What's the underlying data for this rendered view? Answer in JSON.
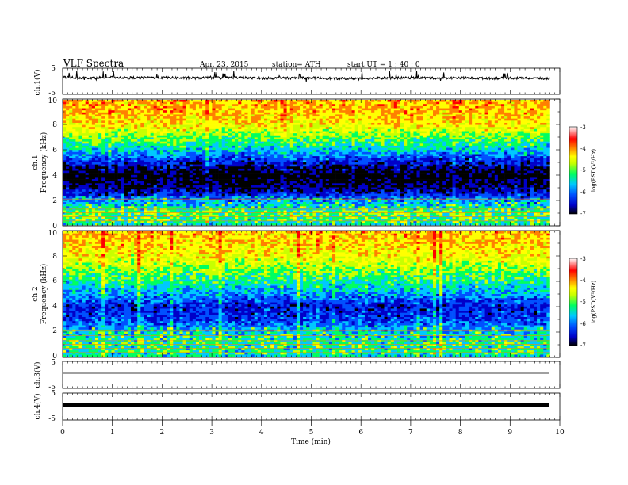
{
  "header": {
    "title": "VLF  Spectra",
    "date": "Apr. 23, 2015",
    "station": "station= ATH",
    "start": "start  UT  =   1 : 40 : 0"
  },
  "colors": {
    "spectrum_scale": [
      "#000000",
      "#0000c8",
      "#0050ff",
      "#00c8ff",
      "#00ff60",
      "#c8ff00",
      "#ffff00",
      "#ff8000",
      "#ff0000",
      "#ffffff"
    ],
    "trace": "#000000"
  },
  "chart_data": [
    {
      "type": "line",
      "id": "ch1-waveform",
      "ylabel": "ch.1(V)",
      "ylim": [
        -5,
        5
      ],
      "yticks": [
        "5",
        "-5"
      ],
      "x": [
        0,
        0.5,
        1,
        1.5,
        2,
        2.5,
        3,
        3.5,
        4,
        4.5,
        5,
        5.5,
        6,
        6.5,
        7,
        7.5,
        8,
        8.5,
        9,
        9.5,
        9.8
      ],
      "values": [
        1.6,
        1.2,
        1.5,
        1.3,
        1.4,
        1.2,
        1.3,
        1.4,
        1.1,
        1.2,
        1.3,
        1.0,
        1.1,
        1.2,
        1.3,
        1.2,
        1.3,
        1.1,
        1.2,
        1.1,
        1.0
      ]
    },
    {
      "type": "heatmap",
      "id": "ch1-spectrogram",
      "ylabel_top": "ch.1",
      "ylabel": "Frequency  (kHz)",
      "ylim": [
        0,
        10
      ],
      "yticks": [
        "0",
        "2",
        "4",
        "6",
        "8",
        "10"
      ],
      "freq_khz": [
        0,
        1,
        2,
        3,
        4,
        5,
        6,
        7,
        8,
        9,
        10
      ],
      "log_psd": [
        -5.2,
        -5.0,
        -5.8,
        -6.6,
        -6.9,
        -6.2,
        -5.4,
        -4.8,
        -4.1,
        -3.9,
        -3.8
      ],
      "colorbar": {
        "label": "log(PSD(V²/Hz)",
        "ticks": [
          "-3",
          "-4",
          "-5",
          "-6",
          "-7"
        ],
        "range": [
          -7,
          -3
        ]
      }
    },
    {
      "type": "heatmap",
      "id": "ch2-spectrogram",
      "ylabel_top": "ch.2",
      "ylabel": "Frequency  (kHz)",
      "ylim": [
        0,
        10
      ],
      "yticks": [
        "0",
        "2",
        "4",
        "6",
        "8",
        "10"
      ],
      "freq_khz": [
        0,
        1,
        2,
        3,
        4,
        5,
        6,
        7,
        8,
        9,
        10
      ],
      "log_psd": [
        -5.3,
        -5.2,
        -5.5,
        -6.0,
        -6.2,
        -5.6,
        -5.1,
        -4.7,
        -4.2,
        -4.0,
        -3.9
      ],
      "colorbar": {
        "label": "log(PSD(V²/Hz)",
        "ticks": [
          "-3",
          "-4",
          "-5",
          "-6",
          "-7"
        ],
        "range": [
          -7,
          -3
        ]
      }
    },
    {
      "type": "line",
      "id": "ch3-waveform",
      "ylabel": "ch.3(V)",
      "ylim": [
        -5,
        5
      ],
      "yticks": [
        "5",
        "-5"
      ],
      "x": [
        0,
        9.8
      ],
      "values": [
        0.1,
        0.1
      ]
    },
    {
      "type": "line",
      "id": "ch4-waveform",
      "ylabel": "ch.4(V)",
      "ylim": [
        -5,
        5
      ],
      "yticks": [
        "5",
        "-5"
      ],
      "x": [
        0,
        9.8
      ],
      "values": [
        0.0,
        0.0
      ]
    }
  ],
  "time_axis": {
    "label": "Time  (min)",
    "xlim": [
      0,
      10
    ],
    "ticks": [
      "0",
      "1",
      "2",
      "3",
      "4",
      "5",
      "6",
      "7",
      "8",
      "9",
      "10"
    ]
  }
}
